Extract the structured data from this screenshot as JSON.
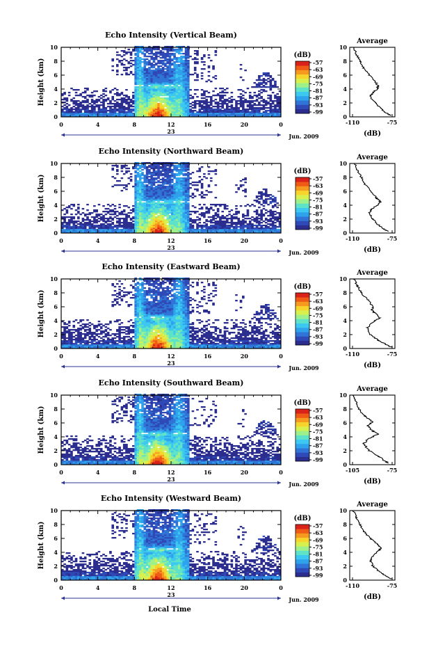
{
  "figure": {
    "x_axis_label": "Local Time",
    "date_label": "Jun. 2009",
    "day_label": "23",
    "colorbar_unit": "(dB)",
    "colorbar_ticks": [
      "-57",
      "-63",
      "-69",
      "-75",
      "-81",
      "-87",
      "-93",
      "-99"
    ],
    "colors": [
      "#2b2d8f",
      "#2f49b6",
      "#2f74d6",
      "#2fa2ec",
      "#3cc8f0",
      "#5ee3c8",
      "#9ef08a",
      "#d8f04e",
      "#f7d42c",
      "#f59a1e",
      "#ef5a16",
      "#d8221a"
    ]
  },
  "chart_data": [
    {
      "type": "heatmap",
      "title": "Echo Intensity (Vertical Beam)",
      "ylabel": "Height (km)",
      "x_ticks": [
        "0",
        "4",
        "8",
        "12",
        "16",
        "20",
        "0"
      ],
      "y_ticks": [
        "0",
        "2",
        "4",
        "6",
        "8",
        "10"
      ],
      "xlim": [
        0,
        24
      ],
      "ylim": [
        0,
        10
      ],
      "profile": {
        "title": "Average",
        "xlabel": "(dB)",
        "x_ticks": [
          "-110",
          "-75"
        ],
        "xlim": [
          -110,
          -75
        ],
        "y_ticks": [
          "0",
          "2",
          "4",
          "6",
          "8",
          "10"
        ],
        "points": [
          [
            -78,
            0.2
          ],
          [
            -82,
            0.6
          ],
          [
            -86,
            1.2
          ],
          [
            -90,
            2
          ],
          [
            -94,
            2.8
          ],
          [
            -93,
            3.3
          ],
          [
            -89,
            4
          ],
          [
            -88,
            4.4
          ],
          [
            -90,
            5
          ],
          [
            -95,
            6
          ],
          [
            -99,
            7
          ],
          [
            -102,
            8
          ],
          [
            -105,
            9
          ],
          [
            -107,
            10
          ]
        ]
      }
    },
    {
      "type": "heatmap",
      "title": "Echo Intensity (Northward Beam)",
      "ylabel": "Height (km)",
      "x_ticks": [
        "0",
        "4",
        "8",
        "12",
        "16",
        "20",
        "0"
      ],
      "y_ticks": [
        "0",
        "2",
        "4",
        "6",
        "8",
        "10"
      ],
      "xlim": [
        0,
        24
      ],
      "ylim": [
        0,
        10
      ],
      "profile": {
        "title": "Average",
        "xlabel": "(dB)",
        "x_ticks": [
          "-110",
          "-75"
        ],
        "xlim": [
          -110,
          -75
        ],
        "y_ticks": [
          "0",
          "2",
          "4",
          "6",
          "8",
          "10"
        ],
        "points": [
          [
            -80,
            0.2
          ],
          [
            -84,
            0.6
          ],
          [
            -88,
            1.2
          ],
          [
            -92,
            2
          ],
          [
            -95,
            2.8
          ],
          [
            -93,
            3.4
          ],
          [
            -88,
            4.1
          ],
          [
            -86,
            4.5
          ],
          [
            -89,
            5
          ],
          [
            -94,
            6
          ],
          [
            -98,
            7
          ],
          [
            -101,
            8
          ],
          [
            -104,
            9
          ],
          [
            -106,
            10
          ]
        ]
      }
    },
    {
      "type": "heatmap",
      "title": "Echo Intensity (Eastward Beam)",
      "ylabel": "Height (km)",
      "x_ticks": [
        "0",
        "4",
        "8",
        "12",
        "16",
        "20",
        "0"
      ],
      "y_ticks": [
        "0",
        "2",
        "4",
        "6",
        "8",
        "10"
      ],
      "xlim": [
        0,
        24
      ],
      "ylim": [
        0,
        10
      ],
      "profile": {
        "title": "Average",
        "xlabel": "(dB)",
        "x_ticks": [
          "-110",
          "-75"
        ],
        "xlim": [
          -110,
          -75
        ],
        "y_ticks": [
          "0",
          "2",
          "4",
          "6",
          "8",
          "10"
        ],
        "points": [
          [
            -78,
            0.2
          ],
          [
            -82,
            0.6
          ],
          [
            -88,
            1.2
          ],
          [
            -94,
            2
          ],
          [
            -96,
            3
          ],
          [
            -92,
            3.8
          ],
          [
            -87,
            4.4
          ],
          [
            -90,
            5
          ],
          [
            -93,
            5.5
          ],
          [
            -92,
            6
          ],
          [
            -96,
            7
          ],
          [
            -101,
            8
          ],
          [
            -104,
            9
          ],
          [
            -107,
            10
          ]
        ]
      }
    },
    {
      "type": "heatmap",
      "title": "Echo Intensity (Southward Beam)",
      "ylabel": "Height (km)",
      "x_ticks": [
        "0",
        "4",
        "8",
        "12",
        "16",
        "20",
        "0"
      ],
      "y_ticks": [
        "0",
        "2",
        "4",
        "6",
        "8",
        "10"
      ],
      "xlim": [
        0,
        24
      ],
      "ylim": [
        0,
        10
      ],
      "profile": {
        "title": "Average",
        "xlabel": "(dB)",
        "x_ticks": [
          "-105",
          "-75"
        ],
        "xlim": [
          -105,
          -75
        ],
        "y_ticks": [
          "0",
          "2",
          "4",
          "6",
          "8",
          "10"
        ],
        "points": [
          [
            -79,
            0.2
          ],
          [
            -82,
            0.6
          ],
          [
            -86,
            1.2
          ],
          [
            -92,
            2
          ],
          [
            -96,
            3
          ],
          [
            -92,
            3.8
          ],
          [
            -86,
            4.4
          ],
          [
            -91,
            5
          ],
          [
            -93,
            5.6
          ],
          [
            -90,
            6.2
          ],
          [
            -95,
            7
          ],
          [
            -99,
            8
          ],
          [
            -101,
            9
          ],
          [
            -103,
            10
          ]
        ]
      }
    },
    {
      "type": "heatmap",
      "title": "Echo Intensity (Westward Beam)",
      "ylabel": "Height (km)",
      "x_ticks": [
        "0",
        "4",
        "8",
        "12",
        "16",
        "20",
        "0"
      ],
      "y_ticks": [
        "0",
        "2",
        "4",
        "6",
        "8",
        "10"
      ],
      "xlim": [
        0,
        24
      ],
      "ylim": [
        0,
        10
      ],
      "profile": {
        "title": "Average",
        "xlabel": "(dB)",
        "x_ticks": [
          "-110",
          "-75"
        ],
        "xlim": [
          -110,
          -75
        ],
        "y_ticks": [
          "0",
          "2",
          "4",
          "6",
          "8",
          "10"
        ],
        "points": [
          [
            -78,
            0.2
          ],
          [
            -82,
            0.6
          ],
          [
            -87,
            1.2
          ],
          [
            -92,
            2
          ],
          [
            -94,
            2.8
          ],
          [
            -92,
            3.4
          ],
          [
            -88,
            4.2
          ],
          [
            -86,
            4.6
          ],
          [
            -89,
            5.2
          ],
          [
            -94,
            6
          ],
          [
            -99,
            7
          ],
          [
            -102,
            8
          ],
          [
            -105,
            9
          ],
          [
            -107,
            10
          ]
        ]
      }
    }
  ]
}
